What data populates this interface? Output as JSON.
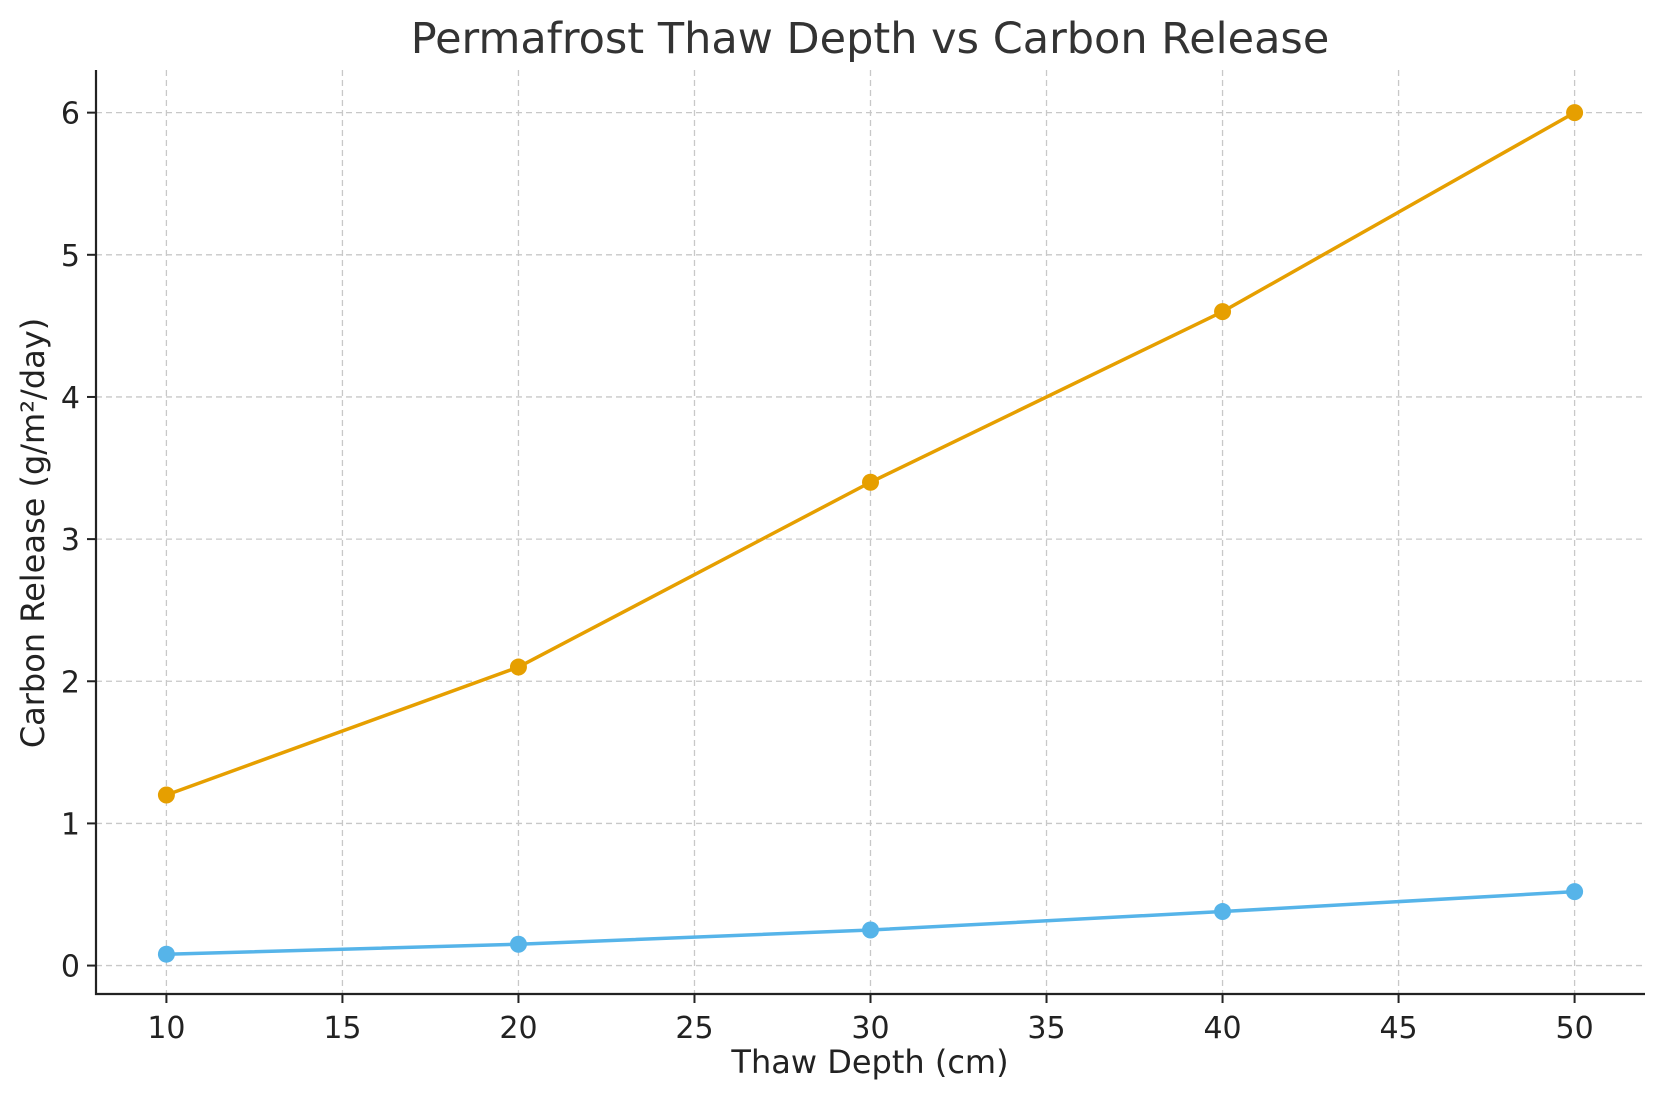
{
  "chart_data": {
    "type": "line",
    "title": "Permafrost Thaw Depth vs Carbon Release",
    "xlabel": "Thaw Depth (cm)",
    "ylabel": "Carbon Release (g/m²/day)",
    "xlim": [
      8,
      52
    ],
    "ylim": [
      -0.2,
      6.3
    ],
    "xticks": [
      10,
      15,
      20,
      25,
      30,
      35,
      40,
      45,
      50
    ],
    "yticks": [
      0,
      1,
      2,
      3,
      4,
      5,
      6
    ],
    "grid": true,
    "x": [
      10,
      20,
      30,
      40,
      50
    ],
    "series": [
      {
        "values": [
          1.2,
          2.1,
          3.4,
          4.6,
          6.0
        ],
        "color": "#E69F00"
      },
      {
        "values": [
          0.08,
          0.15,
          0.25,
          0.38,
          0.52
        ],
        "color": "#56B4E9"
      }
    ]
  }
}
